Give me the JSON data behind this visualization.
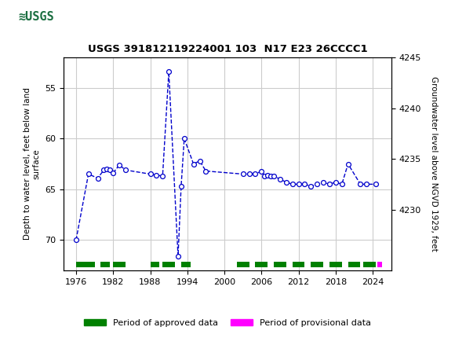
{
  "title": "USGS 391812119224001 103  N17 E23 26CCCC1",
  "ylabel_left": "Depth to water level, feet below land\nsurface",
  "ylabel_right": "Groundwater level above NGVD 1929, feet",
  "ylim_left": [
    52,
    73
  ],
  "ylim_right": [
    4224,
    4245
  ],
  "xlim": [
    1974,
    2027
  ],
  "yticks_left": [
    55,
    60,
    65,
    70
  ],
  "yticks_right": [
    4230,
    4235,
    4240,
    4245
  ],
  "xticks": [
    1976,
    1982,
    1988,
    1994,
    2000,
    2006,
    2012,
    2018,
    2024
  ],
  "header_color": "#1a6e40",
  "background_color": "#ffffff",
  "grid_color": "#cccccc",
  "data_points": [
    [
      1976,
      70.0
    ],
    [
      1978,
      63.5
    ],
    [
      1979.5,
      63.9
    ],
    [
      1980.5,
      63.1
    ],
    [
      1981,
      63.0
    ],
    [
      1981.5,
      63.1
    ],
    [
      1982,
      63.4
    ],
    [
      1983,
      62.6
    ],
    [
      1984,
      63.1
    ],
    [
      1988,
      63.5
    ],
    [
      1989,
      63.6
    ],
    [
      1990,
      63.7
    ],
    [
      1991,
      53.4
    ],
    [
      1992.5,
      71.6
    ],
    [
      1993,
      64.7
    ],
    [
      1993.5,
      60.0
    ],
    [
      1995,
      62.5
    ],
    [
      1996,
      62.2
    ],
    [
      1997,
      63.2
    ],
    [
      2003,
      63.5
    ],
    [
      2004,
      63.5
    ],
    [
      2005,
      63.5
    ],
    [
      2006,
      63.2
    ],
    [
      2006.5,
      63.7
    ],
    [
      2007,
      63.6
    ],
    [
      2007.5,
      63.7
    ],
    [
      2008,
      63.7
    ],
    [
      2009,
      64.0
    ],
    [
      2010,
      64.3
    ],
    [
      2011,
      64.5
    ],
    [
      2012,
      64.5
    ],
    [
      2013,
      64.5
    ],
    [
      2014,
      64.7
    ],
    [
      2015,
      64.5
    ],
    [
      2016,
      64.3
    ],
    [
      2017,
      64.5
    ],
    [
      2018,
      64.3
    ],
    [
      2019,
      64.5
    ],
    [
      2020,
      62.5
    ],
    [
      2022,
      64.5
    ],
    [
      2023,
      64.5
    ],
    [
      2024.5,
      64.5
    ]
  ],
  "line_color": "#0000cc",
  "marker_color": "#0000cc",
  "approved_color": "#008000",
  "provisional_color": "#ff00ff",
  "legend_approved": "Period of approved data",
  "legend_provisional": "Period of provisional data",
  "approved_periods": [
    [
      1976,
      1979
    ],
    [
      1980,
      1981.5
    ],
    [
      1982,
      1984
    ],
    [
      1988,
      1989.5
    ],
    [
      1990,
      1992
    ],
    [
      1993,
      1994.5
    ],
    [
      2002,
      2004
    ],
    [
      2005,
      2007
    ],
    [
      2008,
      2010
    ],
    [
      2011,
      2013
    ],
    [
      2014,
      2016
    ],
    [
      2017,
      2019
    ],
    [
      2020,
      2022
    ],
    [
      2022.5,
      2024.5
    ]
  ],
  "provisional_periods": [
    [
      2024.8,
      2025.5
    ]
  ]
}
